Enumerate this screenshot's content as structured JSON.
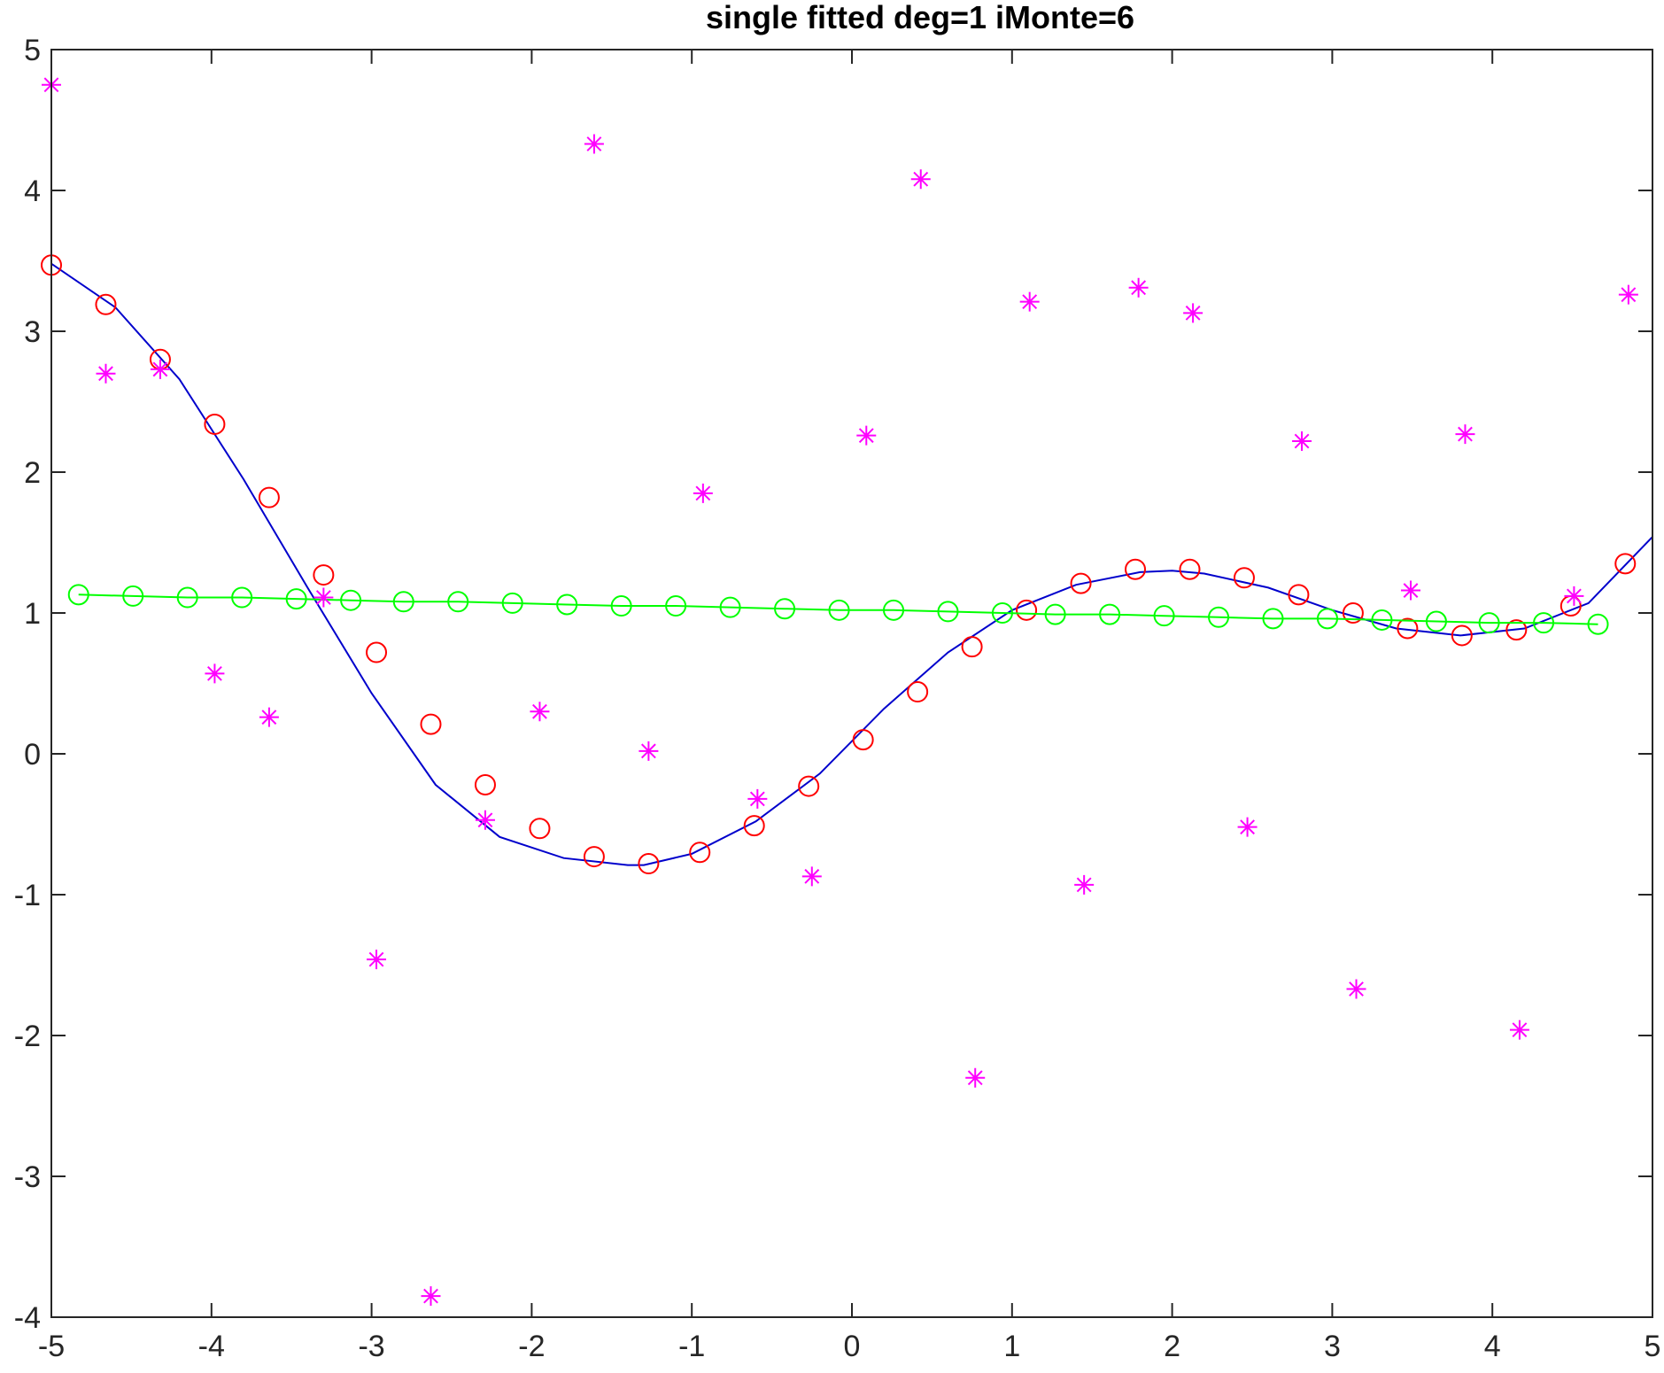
{
  "chart_data": {
    "type": "scatter",
    "title": "single fitted deg=1 iMonte=6",
    "xlabel": "",
    "ylabel": "",
    "xlim": [
      -5,
      5
    ],
    "ylim": [
      -4,
      5
    ],
    "x_ticks": [
      -5,
      -4,
      -3,
      -2,
      -1,
      0,
      1,
      2,
      3,
      4,
      5
    ],
    "y_ticks": [
      -4,
      -3,
      -2,
      -1,
      0,
      1,
      2,
      3,
      4,
      5
    ],
    "grid": false,
    "series": [
      {
        "kind": "line",
        "color": "#0000cc",
        "x": [
          -5.0,
          -4.6,
          -4.2,
          -3.8,
          -3.4,
          -3.0,
          -2.6,
          -2.2,
          -1.8,
          -1.4,
          -1.3,
          -1.0,
          -0.6,
          -0.2,
          0.2,
          0.6,
          1.0,
          1.4,
          1.8,
          2.0,
          2.2,
          2.6,
          3.0,
          3.4,
          3.8,
          4.2,
          4.6,
          5.0
        ],
        "y": [
          3.48,
          3.17,
          2.66,
          1.95,
          1.18,
          0.43,
          -0.22,
          -0.59,
          -0.74,
          -0.79,
          -0.79,
          -0.71,
          -0.48,
          -0.14,
          0.32,
          0.72,
          1.02,
          1.2,
          1.29,
          1.3,
          1.28,
          1.18,
          1.02,
          0.89,
          0.84,
          0.89,
          1.07,
          1.54
        ]
      },
      {
        "kind": "markers",
        "marker": "circle",
        "color": "#ff0000",
        "x": [
          -5.0,
          -4.66,
          -4.32,
          -3.98,
          -3.64,
          -3.3,
          -2.97,
          -2.63,
          -2.29,
          -1.95,
          -1.61,
          -1.27,
          -0.95,
          -0.61,
          -0.27,
          0.07,
          0.41,
          0.75,
          1.09,
          1.43,
          1.77,
          2.11,
          2.45,
          2.79,
          3.13,
          3.47,
          3.81,
          4.15,
          4.49,
          4.83
        ],
        "y": [
          3.47,
          3.19,
          2.8,
          2.34,
          1.82,
          1.27,
          0.72,
          0.21,
          -0.22,
          -0.53,
          -0.73,
          -0.78,
          -0.7,
          -0.51,
          -0.23,
          0.1,
          0.44,
          0.76,
          1.02,
          1.21,
          1.31,
          1.31,
          1.25,
          1.13,
          1.0,
          0.89,
          0.84,
          0.88,
          1.05,
          1.35
        ]
      },
      {
        "kind": "line+markers",
        "marker": "circle",
        "color": "#00ff00",
        "x": [
          -4.83,
          -4.49,
          -4.15,
          -3.81,
          -3.47,
          -3.13,
          -2.8,
          -2.46,
          -2.12,
          -1.78,
          -1.44,
          -1.1,
          -0.76,
          -0.42,
          -0.08,
          0.26,
          0.6,
          0.94,
          1.27,
          1.61,
          1.95,
          2.29,
          2.63,
          2.97,
          3.31,
          3.65,
          3.98,
          4.32,
          4.66
        ],
        "y": [
          1.13,
          1.12,
          1.11,
          1.11,
          1.1,
          1.09,
          1.08,
          1.08,
          1.07,
          1.06,
          1.05,
          1.05,
          1.04,
          1.03,
          1.02,
          1.02,
          1.01,
          1.0,
          0.99,
          0.99,
          0.98,
          0.97,
          0.96,
          0.96,
          0.95,
          0.94,
          0.93,
          0.93,
          0.92
        ]
      },
      {
        "kind": "markers",
        "marker": "asterisk",
        "color": "#ff00ff",
        "x": [
          -5.0,
          -4.66,
          -4.32,
          -3.98,
          -3.64,
          -3.3,
          -2.97,
          -2.63,
          -2.29,
          -1.95,
          -1.61,
          -1.27,
          -0.93,
          -0.59,
          -0.25,
          0.09,
          0.43,
          0.77,
          1.11,
          1.45,
          1.79,
          2.13,
          2.47,
          2.81,
          3.15,
          3.49,
          3.83,
          4.17,
          4.51,
          4.85
        ],
        "y": [
          4.75,
          2.7,
          2.73,
          0.57,
          0.26,
          1.11,
          -1.46,
          -3.85,
          -0.47,
          0.3,
          4.33,
          0.02,
          1.85,
          -0.32,
          -0.87,
          2.26,
          4.08,
          -2.3,
          3.21,
          -0.93,
          3.31,
          3.13,
          -0.52,
          2.22,
          -1.67,
          1.16,
          2.27,
          -1.96,
          1.12,
          3.26
        ]
      }
    ]
  }
}
